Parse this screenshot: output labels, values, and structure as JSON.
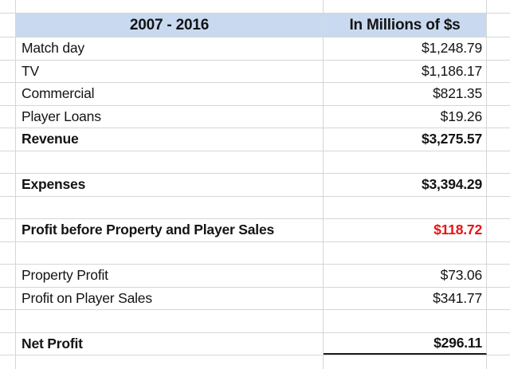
{
  "table": {
    "header": {
      "period": "2007 - 2016",
      "units": "In Millions of $s"
    },
    "rows": [
      {
        "label": "Match day",
        "value": "$1,248.79",
        "bold": false,
        "value_red": false,
        "underline": false
      },
      {
        "label": "TV",
        "value": "$1,186.17",
        "bold": false,
        "value_red": false,
        "underline": false
      },
      {
        "label": "Commercial",
        "value": "$821.35",
        "bold": false,
        "value_red": false,
        "underline": false
      },
      {
        "label": "Player Loans",
        "value": "$19.26",
        "bold": false,
        "value_red": false,
        "underline": false
      },
      {
        "label": "Revenue",
        "value": "$3,275.57",
        "bold": true,
        "value_red": false,
        "underline": false
      },
      {
        "label": "",
        "value": "",
        "bold": false,
        "value_red": false,
        "underline": false
      },
      {
        "label": "Expenses",
        "value": "$3,394.29",
        "bold": true,
        "value_red": false,
        "underline": false
      },
      {
        "label": "",
        "value": "",
        "bold": false,
        "value_red": false,
        "underline": false
      },
      {
        "label": "Profit before Property and Player Sales",
        "value": "$118.72",
        "bold": true,
        "value_red": true,
        "underline": false
      },
      {
        "label": "",
        "value": "",
        "bold": false,
        "value_red": false,
        "underline": false
      },
      {
        "label": "Property Profit",
        "value": "$73.06",
        "bold": false,
        "value_red": false,
        "underline": false
      },
      {
        "label": "Profit on Player Sales",
        "value": "$341.77",
        "bold": false,
        "value_red": false,
        "underline": false
      },
      {
        "label": "",
        "value": "",
        "bold": false,
        "value_red": false,
        "underline": false
      },
      {
        "label": "Net Profit",
        "value": "$296.11",
        "bold": true,
        "value_red": false,
        "underline": true
      }
    ]
  },
  "colors": {
    "header_background": "#c9daf0",
    "gridline": "#d6d6d6",
    "text": "#141414",
    "negative_value": "#e81212"
  },
  "chart_data": {
    "type": "table",
    "title": "2007 - 2016",
    "columns": [
      "2007 - 2016",
      "In Millions of $s"
    ],
    "rows": [
      [
        "Match day",
        1248.79
      ],
      [
        "TV",
        1186.17
      ],
      [
        "Commercial",
        821.35
      ],
      [
        "Player Loans",
        19.26
      ],
      [
        "Revenue",
        3275.57
      ],
      [
        "Expenses",
        3394.29
      ],
      [
        "Profit before Property and Player Sales",
        118.72
      ],
      [
        "Property Profit",
        73.06
      ],
      [
        "Profit on Player Sales",
        341.77
      ],
      [
        "Net Profit",
        296.11
      ]
    ],
    "notes": "Revenue, Expenses, Profit before Property and Player Sales, and Net Profit are bold summary rows; 118.72 shown in red; Net Profit value underlined."
  }
}
